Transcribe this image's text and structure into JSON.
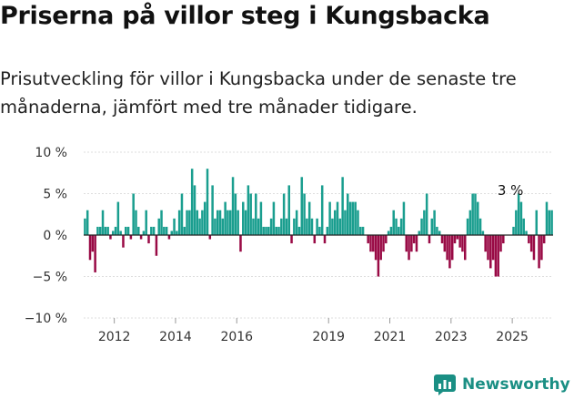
{
  "title": "Priserna på villor steg i Kungsbacka",
  "subtitle": "Prisutveckling för villor i Kungsbacka under de senaste tre månaderna, jämfört med tre månader tidigare.",
  "brand": "Newsworthy",
  "colors": {
    "positive": "#1a9e8f",
    "negative": "#990a45",
    "brand": "#1a8f84",
    "zero": "#222222",
    "tick": "#999999"
  },
  "chart_data": {
    "type": "bar",
    "title": "Priserna på villor steg i Kungsbacka",
    "xlabel": "",
    "ylabel": "",
    "ylim": [
      -10,
      10
    ],
    "yticks": [
      10,
      5,
      0,
      -5,
      -10
    ],
    "ytick_labels": [
      "10 %",
      "5 %",
      "0 %",
      "−5 %",
      "−10 %"
    ],
    "xtick_labels": [
      "2012",
      "2014",
      "2016",
      "2019",
      "2021",
      "2023",
      "2025"
    ],
    "xtick_index": [
      12,
      36,
      60,
      96,
      120,
      144,
      168
    ],
    "start": "2011-01",
    "unit": "%",
    "annotation": {
      "text": "3 %",
      "index": 168
    },
    "values": [
      2,
      3,
      -3,
      -2,
      -4.5,
      1,
      1,
      3,
      1,
      1,
      -0.5,
      0.5,
      1,
      4,
      0.5,
      -1.5,
      1,
      1,
      -0.5,
      5,
      3,
      1,
      -0.5,
      0.5,
      3,
      -1,
      1,
      1,
      -2.5,
      2,
      3,
      1,
      1,
      -0.5,
      0.5,
      2,
      0.5,
      3,
      5,
      1,
      3,
      3,
      8,
      6,
      3,
      2,
      3,
      4,
      8,
      -0.5,
      6,
      2,
      3,
      3,
      2,
      4,
      3,
      3,
      7,
      5,
      3,
      -2,
      4,
      3,
      6,
      5,
      2,
      5,
      2,
      4,
      1,
      1,
      1,
      2,
      4,
      1,
      1,
      2,
      5,
      2,
      6,
      -1,
      2,
      3,
      1,
      7,
      5,
      2,
      4,
      2,
      -1,
      2,
      1,
      6,
      -1,
      1,
      4,
      2,
      3,
      4,
      2,
      7,
      3,
      5,
      4,
      4,
      4,
      3,
      1,
      1,
      0,
      -1,
      -2,
      -2,
      -3,
      -5,
      -3,
      -2,
      -1,
      0.5,
      1,
      3,
      2,
      1,
      2,
      4,
      -2,
      -3,
      -2,
      -1,
      -2,
      0.5,
      2,
      3,
      5,
      -1,
      2,
      3,
      1,
      0.5,
      -1,
      -2,
      -3,
      -4,
      -3,
      -1,
      -0.5,
      -1.5,
      -2,
      -3,
      2,
      3,
      5,
      5,
      4,
      2,
      0.5,
      -2,
      -3,
      -4,
      -3,
      -5,
      -5,
      -2,
      -1,
      0,
      0,
      0,
      1,
      3,
      5,
      4,
      2,
      0.5,
      -1,
      -2,
      -3,
      3,
      -4,
      -3,
      -1,
      4,
      3,
      3
    ]
  }
}
